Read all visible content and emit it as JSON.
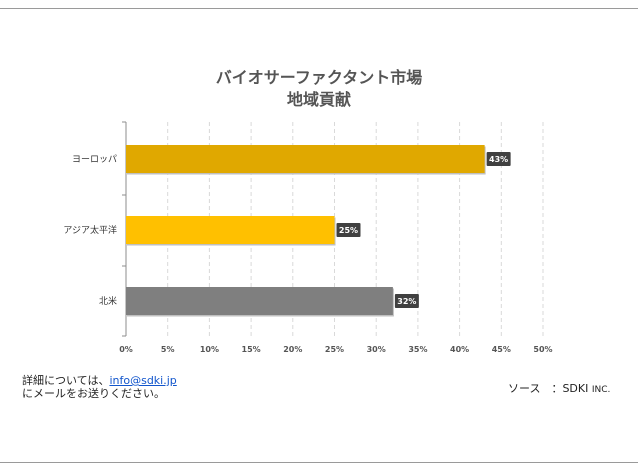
{
  "chart_data": {
    "type": "bar",
    "orientation": "horizontal",
    "title_line1": "バイオサーファクタント市場",
    "title_line2": "地域貢献",
    "categories": [
      "ヨーロッパ",
      "アジア太平洋",
      "北米"
    ],
    "values": [
      43,
      25,
      32
    ],
    "value_labels": [
      "43%",
      "25%",
      "32%"
    ],
    "colors": [
      "#e0a800",
      "#ffc000",
      "#7f7f7f"
    ],
    "xlim": [
      0,
      50
    ],
    "xticks": [
      0,
      5,
      10,
      15,
      20,
      25,
      30,
      35,
      40,
      45,
      50
    ],
    "xtick_labels": [
      "0%",
      "5%",
      "10%",
      "15%",
      "20%",
      "25%",
      "30%",
      "35%",
      "40%",
      "45%",
      "50%"
    ],
    "grid": true
  },
  "footer": {
    "contact_prefix": "詳細については、",
    "contact_email": "info@sdki.jp",
    "contact_suffix": "にメールをお送りください。",
    "source_label": "ソース　：SDKI",
    "source_suffix": "INC."
  }
}
